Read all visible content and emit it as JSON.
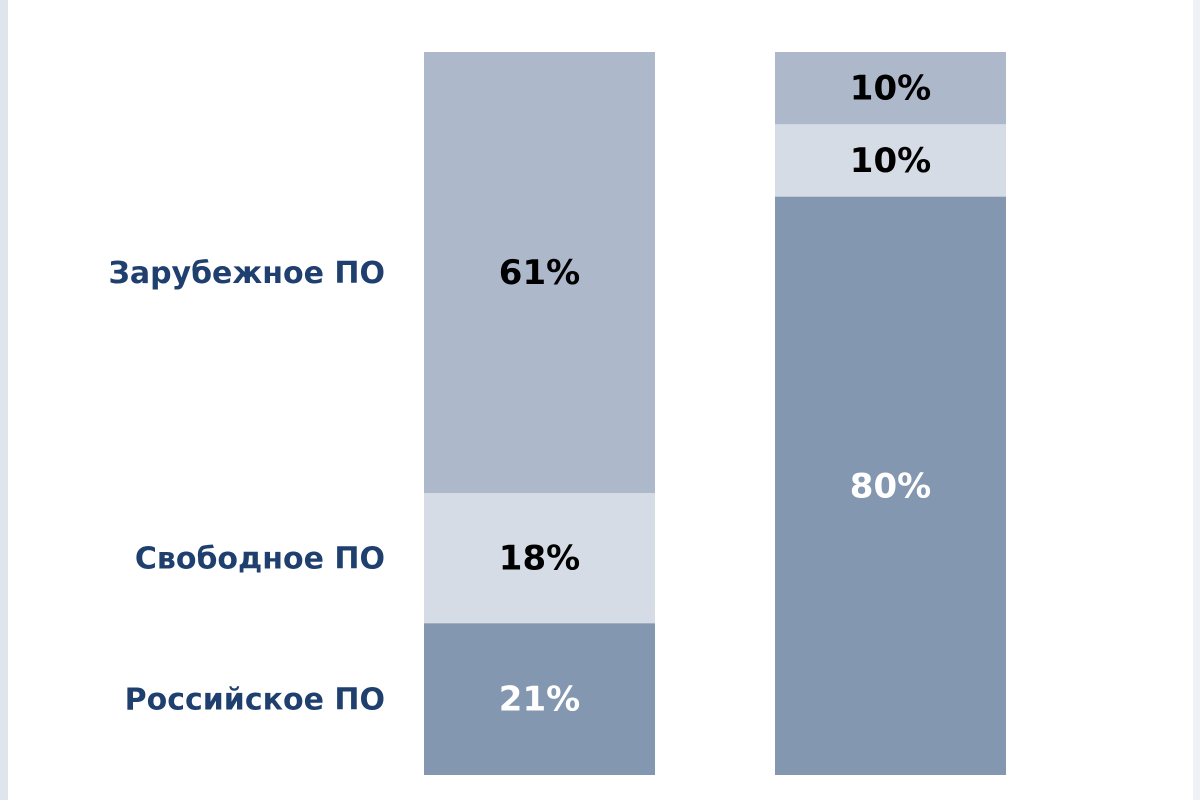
{
  "chart_data": {
    "type": "stacked-bar",
    "categories": [
      null,
      null
    ],
    "ylim": [
      0,
      100
    ],
    "series": [
      {
        "name": "Российское ПО",
        "color": "#8497b0",
        "label_color": "#ffffff",
        "values": [
          21,
          80
        ],
        "value_labels": [
          "21%",
          "80%"
        ]
      },
      {
        "name": "Свободное ПО",
        "color": "#d6dce5",
        "label_color": "#000000",
        "values": [
          18,
          10
        ],
        "value_labels": [
          "18%",
          "10%"
        ]
      },
      {
        "name": "Зарубежное ПО",
        "color": "#adb9ca",
        "label_color": "#000000",
        "values": [
          61,
          10
        ],
        "value_labels": [
          "61%",
          "10%"
        ]
      }
    ]
  }
}
